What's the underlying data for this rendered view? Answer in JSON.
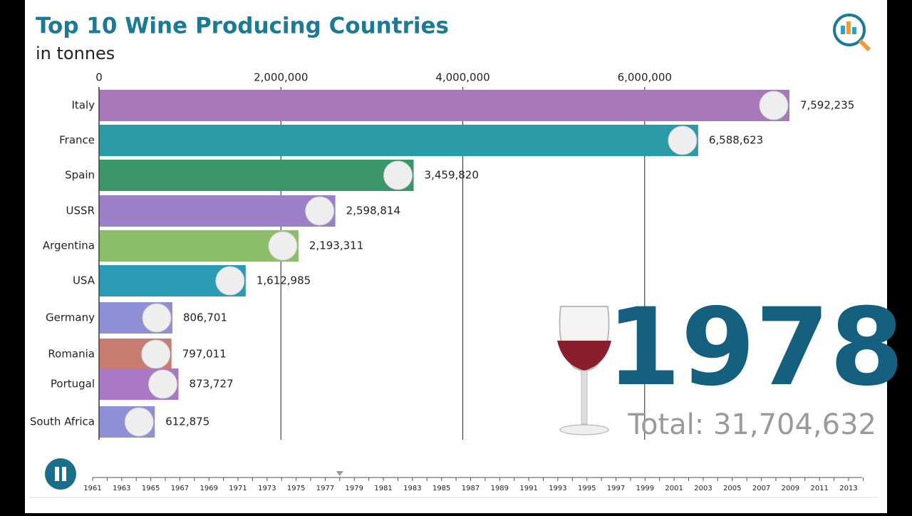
{
  "chart_data": {
    "type": "bar",
    "orientation": "horizontal",
    "title": "Top 10 Wine Producing Countries",
    "subtitle": "in tonnes",
    "categories": [
      "Italy",
      "France",
      "Spain",
      "USSR",
      "Argentina",
      "USA",
      "Germany",
      "Romania",
      "Portugal",
      "South Africa"
    ],
    "values": [
      7592235,
      6588623,
      3459820,
      2598814,
      2193311,
      1612985,
      806701,
      797011,
      873727,
      612875
    ],
    "value_labels": [
      "7,592,235",
      "6,588,623",
      "3,459,820",
      "2,598,814",
      "2,193,311",
      "1,612,985",
      "806,701",
      "797,011",
      "873,727",
      "612,875"
    ],
    "colors": [
      "#a878b9",
      "#2a9aa6",
      "#3a9669",
      "#9b80c8",
      "#8cbd69",
      "#2b9ab5",
      "#8f8fd6",
      "#c97d70",
      "#a878c5",
      "#8f8fd6"
    ],
    "xlim": [
      0,
      8000000
    ],
    "xticks": [
      0,
      {
        "value": 2000000,
        "label": "2,000,000"
      },
      {
        "value": 4000000,
        "label": "4,000,000"
      },
      {
        "value": 6000000,
        "label": "6,000,000"
      }
    ],
    "grid": true,
    "total_label": "Total: 31,704,632"
  },
  "timeline": {
    "years": [
      1961,
      1963,
      1965,
      1967,
      1969,
      1971,
      1973,
      1975,
      1977,
      1979,
      1981,
      1983,
      1985,
      1987,
      1989,
      1991,
      1993,
      1995,
      1997,
      1999,
      2001,
      2003,
      2005,
      2007,
      2009,
      2011,
      2013
    ],
    "current": 1978
  }
}
